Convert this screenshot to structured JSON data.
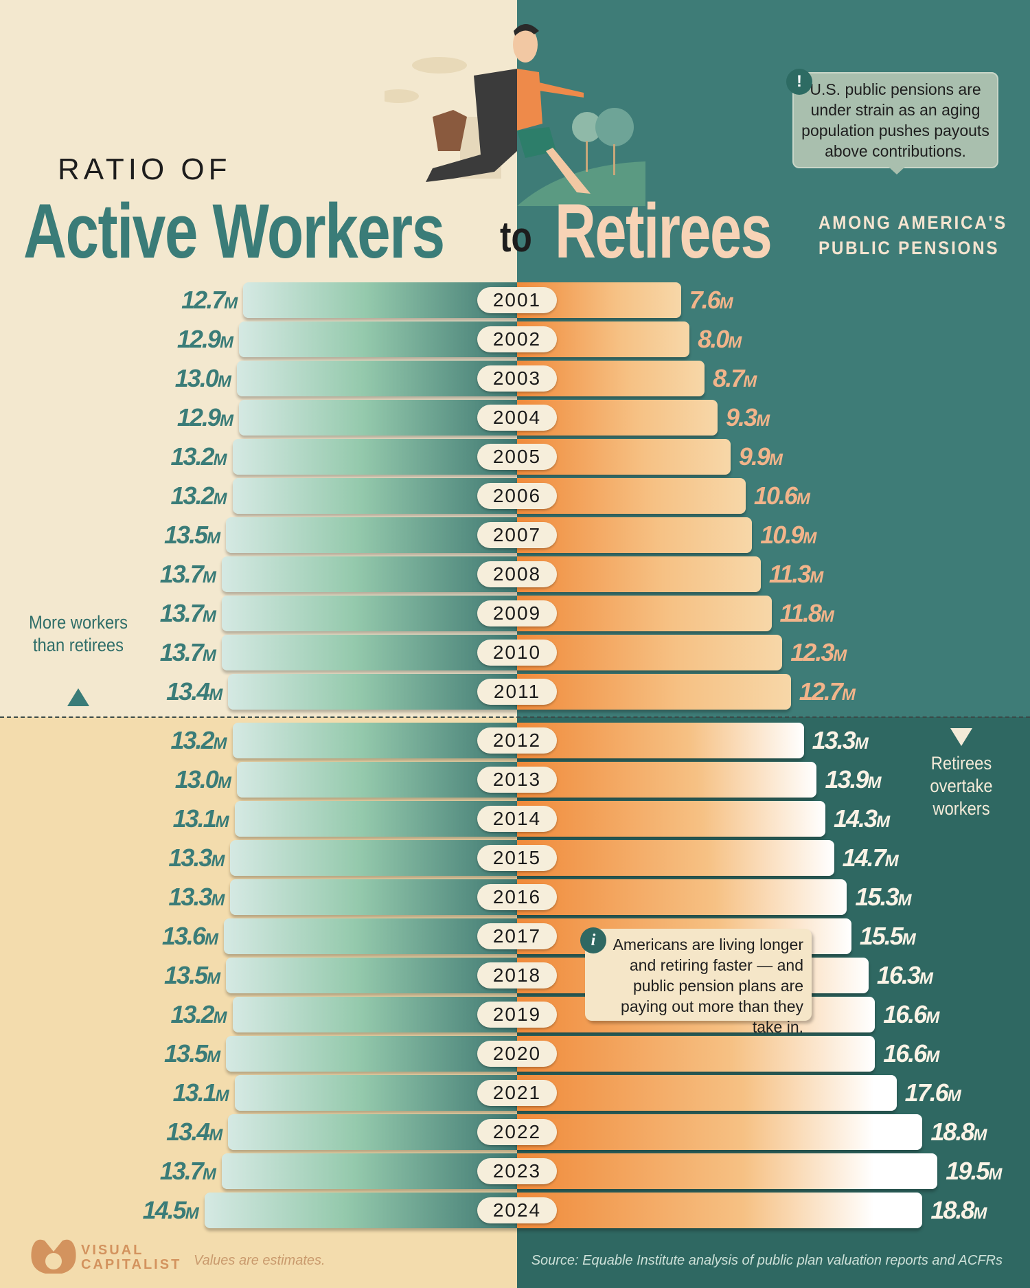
{
  "title": {
    "line1": "RATIO OF",
    "workers": "Active Workers",
    "to": "to",
    "retirees": "Retirees",
    "subtitle_line1": "AMONG AMERICA'S",
    "subtitle_line2": "PUBLIC PENSIONS"
  },
  "callouts": {
    "top": {
      "icon": "exclamation-icon",
      "badge": "!",
      "text": "U.S. public pensions are under strain as an aging population pushes payouts above contributions."
    },
    "bottom": {
      "icon": "info-icon",
      "badge": "i",
      "text": "Americans are living longer and retiring faster — and public pension plans are paying out more than they take in."
    }
  },
  "notes": {
    "left": "More workers than retirees",
    "right": "Retirees overtake workers"
  },
  "footer": {
    "brand_line1": "VISUAL",
    "brand_line2": "CAPITALIST",
    "note": "Values are estimates.",
    "source": "Source: Equable Institute analysis of public plan valuation reports and ACFRs"
  },
  "colors": {
    "workers": "#3a7c78",
    "retirees_early": "#f2b48a",
    "retirees_late": "#fbf3e6",
    "retirees_bar": "#f08a3a",
    "bg_left": "#f3e8cf",
    "bg_right": "#3e7c77"
  },
  "chart_data": {
    "type": "bar",
    "orientation": "diverging-horizontal",
    "unit": "M",
    "series": [
      {
        "name": "Active Workers",
        "side": "left"
      },
      {
        "name": "Retirees",
        "side": "right"
      }
    ],
    "categories": [
      "2001",
      "2002",
      "2003",
      "2004",
      "2005",
      "2006",
      "2007",
      "2008",
      "2009",
      "2010",
      "2011",
      "2012",
      "2013",
      "2014",
      "2015",
      "2016",
      "2017",
      "2018",
      "2019",
      "2020",
      "2021",
      "2022",
      "2023",
      "2024"
    ],
    "workers": [
      12.7,
      12.9,
      13.0,
      12.9,
      13.2,
      13.2,
      13.5,
      13.7,
      13.7,
      13.7,
      13.4,
      13.2,
      13.0,
      13.1,
      13.3,
      13.3,
      13.6,
      13.5,
      13.2,
      13.5,
      13.1,
      13.4,
      13.7,
      14.5
    ],
    "retirees": [
      7.6,
      8.0,
      8.7,
      9.3,
      9.9,
      10.6,
      10.9,
      11.3,
      11.8,
      12.3,
      12.7,
      13.3,
      13.9,
      14.3,
      14.7,
      15.3,
      15.5,
      16.3,
      16.6,
      16.6,
      17.6,
      18.8,
      19.5,
      18.8
    ],
    "split_after": "2011"
  }
}
